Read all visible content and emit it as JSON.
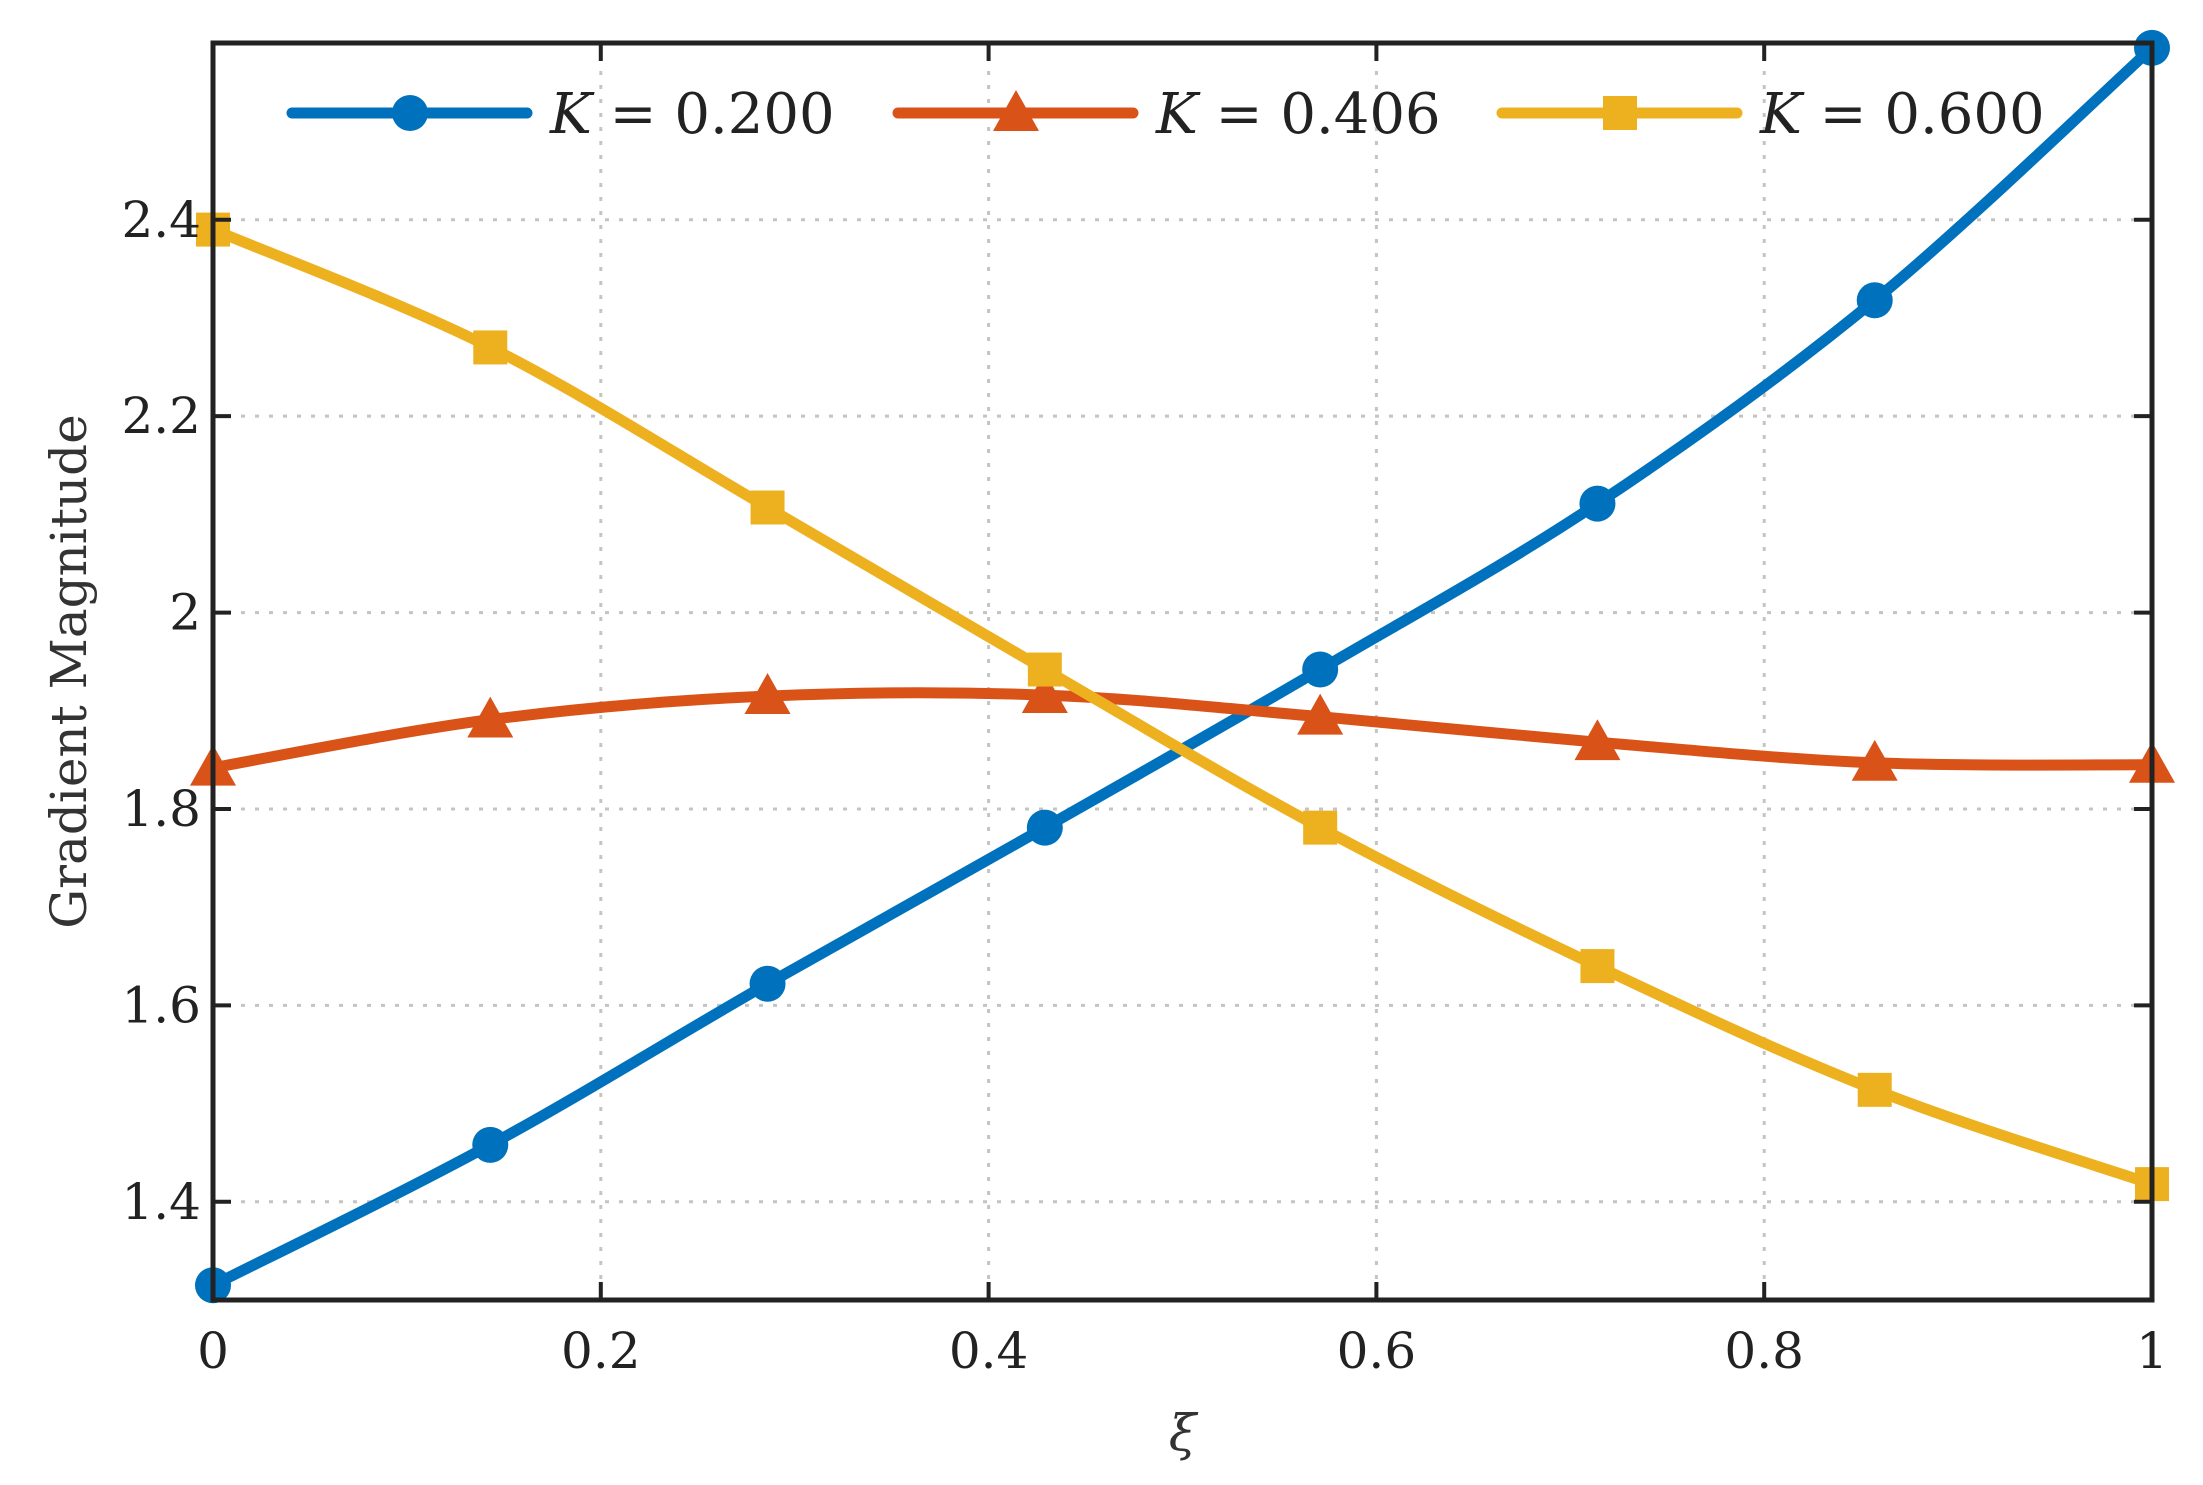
{
  "chart_data": {
    "type": "line",
    "title": "",
    "xlabel": "ξ",
    "ylabel": "Gradient Magnitude",
    "xlim": [
      0,
      1
    ],
    "ylim": [
      1.3,
      2.58
    ],
    "xticks": [
      0,
      0.2,
      0.4,
      0.6,
      0.8,
      1
    ],
    "xtick_labels": [
      "0",
      "0.2",
      "0.4",
      "0.6",
      "0.8",
      "1"
    ],
    "yticks": [
      1.4,
      1.6,
      1.8,
      2.0,
      2.2,
      2.4
    ],
    "ytick_labels": [
      "1.4",
      "1.6",
      "1.8",
      "2",
      "2.2",
      "2.4"
    ],
    "grid": true,
    "legend_position": "top",
    "series": [
      {
        "name": "K = 0.200",
        "legend_symbol": "K",
        "legend_value": "= 0.200",
        "color": "#0072BD",
        "marker": "circle",
        "x": [
          0,
          0.143,
          0.286,
          0.429,
          0.571,
          0.714,
          0.857,
          1.0
        ],
        "y": [
          1.315,
          1.458,
          1.622,
          1.781,
          1.942,
          2.111,
          2.318,
          2.575
        ]
      },
      {
        "name": "K = 0.406",
        "legend_symbol": "K",
        "legend_value": "= 0.406",
        "color": "#D95319",
        "marker": "triangle",
        "x": [
          0,
          0.143,
          0.286,
          0.429,
          0.571,
          0.714,
          0.857,
          1.0
        ],
        "y": [
          1.842,
          1.891,
          1.915,
          1.916,
          1.894,
          1.868,
          1.847,
          1.845
        ]
      },
      {
        "name": "K = 0.600",
        "legend_symbol": "K",
        "legend_value": "= 0.600",
        "color": "#EDB120",
        "marker": "square",
        "x": [
          0,
          0.143,
          0.286,
          0.429,
          0.571,
          0.714,
          0.857,
          1.0
        ],
        "y": [
          2.39,
          2.27,
          2.107,
          1.942,
          1.781,
          1.64,
          1.514,
          1.418
        ]
      }
    ]
  }
}
